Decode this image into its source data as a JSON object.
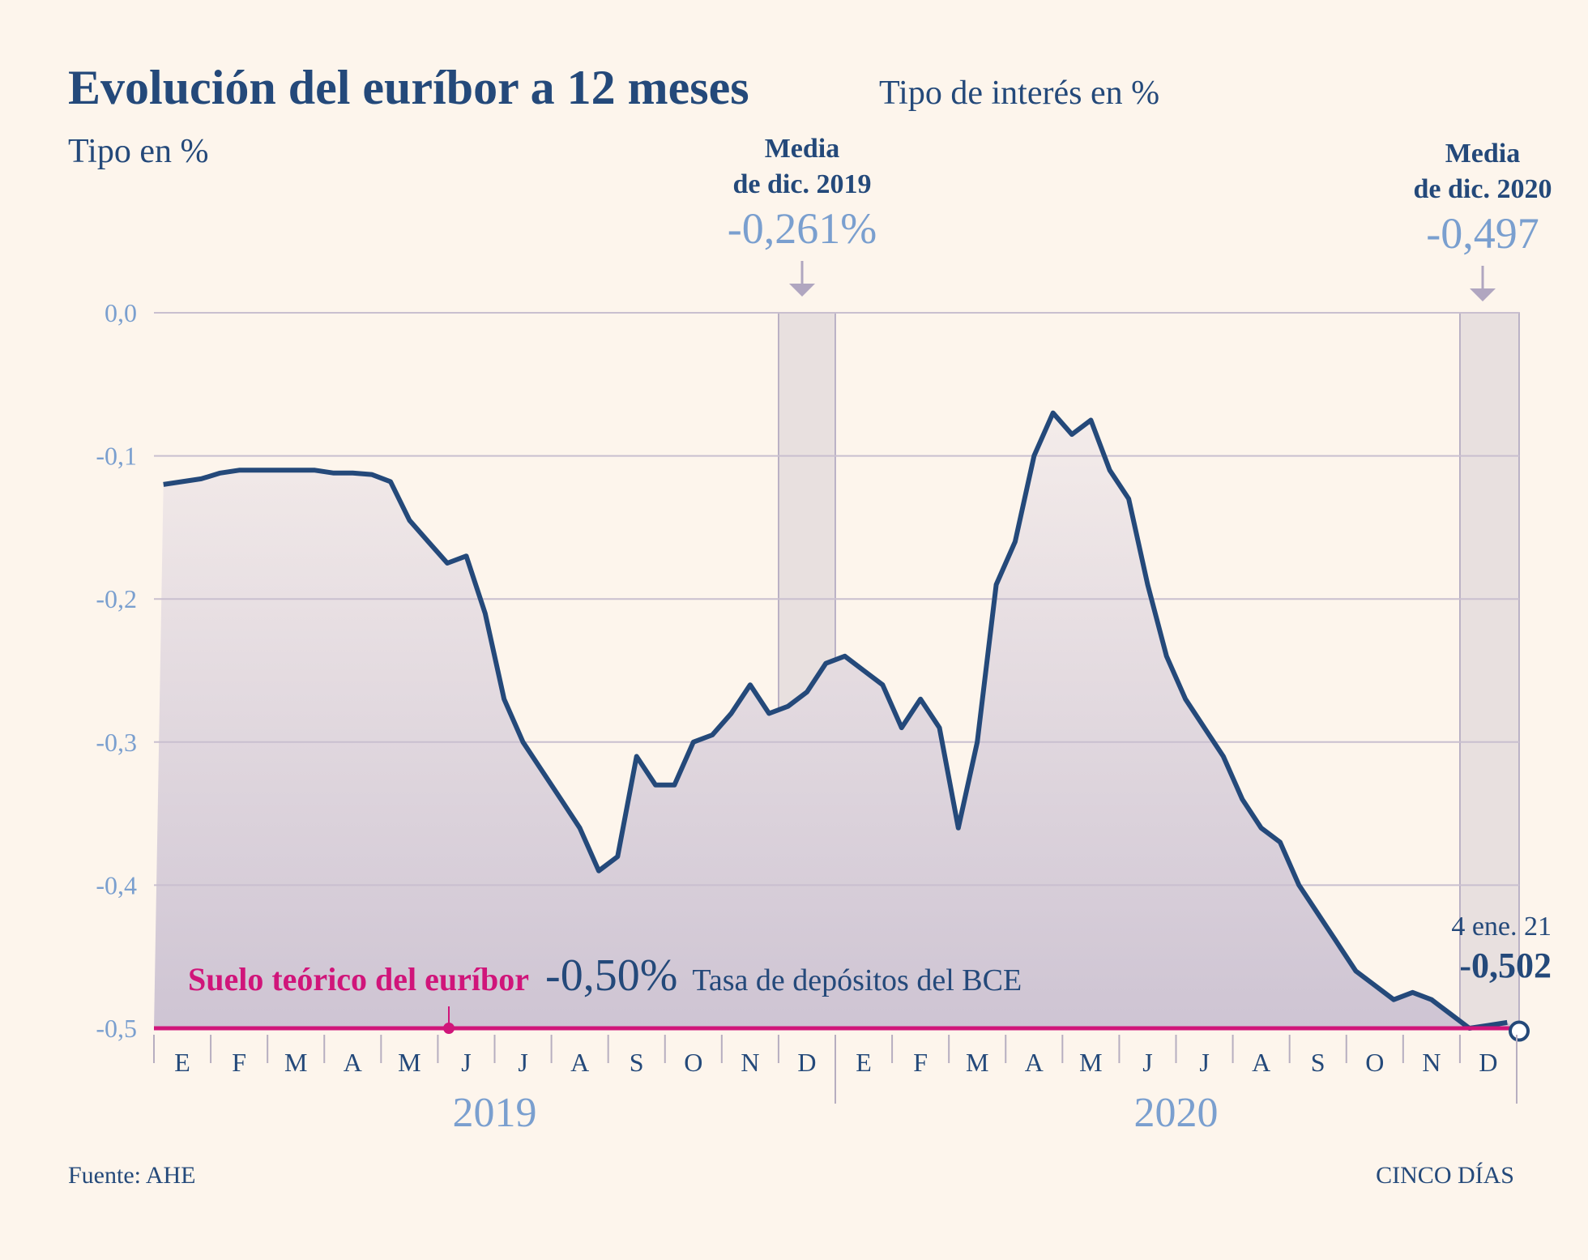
{
  "chart_data": {
    "type": "line",
    "title": "Evolución del euríbor a 12 meses",
    "subtitle": "Tipo de interés en %",
    "y_label": "Tipo en %",
    "categories": [
      null,
      "E",
      null,
      null,
      "F",
      null,
      null,
      "M",
      null,
      null,
      "A",
      null,
      null,
      "M",
      null,
      null,
      "J",
      null,
      null,
      "J",
      null,
      null,
      "A",
      null,
      null,
      "S",
      null,
      null,
      "O",
      null,
      null,
      "N",
      null,
      null,
      "D",
      null,
      null,
      "E",
      null,
      null,
      "F",
      null,
      null,
      "M",
      null,
      null,
      "A",
      null,
      null,
      "M",
      null,
      null,
      "J",
      null,
      null,
      "J",
      null,
      null,
      "A",
      null,
      null,
      "S",
      null,
      null,
      "O",
      null,
      null,
      "N",
      null,
      null,
      "D",
      null
    ],
    "years": [
      "2019",
      "2020"
    ],
    "series": [
      {
        "name": "Euríbor 12 meses",
        "color": "#24497a",
        "values": [
          -0.12,
          -0.118,
          -0.116,
          -0.112,
          -0.11,
          -0.11,
          -0.11,
          -0.11,
          -0.11,
          -0.112,
          -0.112,
          -0.113,
          -0.118,
          -0.145,
          -0.16,
          -0.175,
          -0.17,
          -0.21,
          -0.27,
          -0.3,
          -0.32,
          -0.34,
          -0.36,
          -0.39,
          -0.38,
          -0.31,
          -0.33,
          -0.33,
          -0.3,
          -0.295,
          -0.28,
          -0.26,
          -0.28,
          -0.275,
          -0.265,
          -0.245,
          -0.24,
          -0.25,
          -0.26,
          -0.29,
          -0.27,
          -0.29,
          -0.36,
          -0.3,
          -0.19,
          -0.16,
          -0.1,
          -0.07,
          -0.085,
          -0.075,
          -0.11,
          -0.13,
          -0.19,
          -0.24,
          -0.27,
          -0.29,
          -0.31,
          -0.34,
          -0.36,
          -0.37,
          -0.4,
          -0.42,
          -0.44,
          -0.46,
          -0.47,
          -0.48,
          -0.475,
          -0.48,
          -0.49,
          -0.5,
          -0.498,
          -0.496
        ]
      }
    ],
    "ylim": [
      -0.5,
      0
    ],
    "yticks": [
      {
        "value": 0,
        "label": "0,0"
      },
      {
        "value": -0.1,
        "label": "-0,1"
      },
      {
        "value": -0.2,
        "label": "-0,2"
      },
      {
        "value": -0.3,
        "label": "-0,3"
      },
      {
        "value": -0.4,
        "label": "-0,4"
      },
      {
        "value": -0.5,
        "label": "-0,5"
      }
    ],
    "grid": true,
    "annotations": [
      {
        "lines": [
          "Media",
          "de dic. 2019"
        ],
        "value": -0.261,
        "label": "-0,261%"
      },
      {
        "lines": [
          "Media",
          "de dic. 2020"
        ],
        "value": -0.497,
        "label": "-0,497"
      }
    ],
    "last_point": {
      "date": "4 ene. 21",
      "value": -0.502,
      "label": "-0,502"
    },
    "floor": {
      "name": "Suelo teórico del euríbor",
      "value": -0.5,
      "label": "-0,50%",
      "note": "Tasa de depósitos del BCE",
      "color": "#d0157a"
    },
    "source": "Fuente: AHE",
    "credit": "CINCO DÍAS"
  }
}
